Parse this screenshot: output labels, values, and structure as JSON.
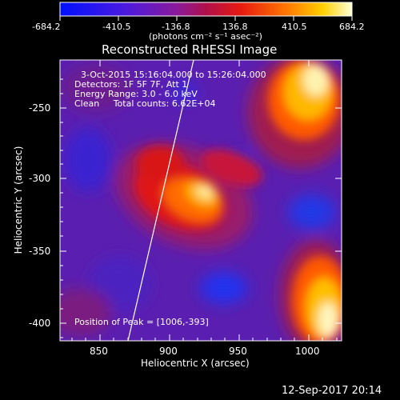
{
  "colorbar": {
    "tick_labels": [
      "-684.2",
      "-410.5",
      "-136.8",
      "136.8",
      "410.5",
      "684.2"
    ],
    "unit_label": "(photons cm⁻² s⁻¹ asec⁻²)"
  },
  "title": "Reconstructed RHESSI Image",
  "info": {
    "line1": "3-Oct-2015 15:16:04.000 to 15:26:04.000",
    "line2": "Detectors: 1F 5F 7F, Att 1",
    "line3": "Energy Range: 3.0 - 6.0 keV",
    "line4": "Clean     Total counts: 6.62E+04"
  },
  "peak_text": "Position of Peak = [1006,-393]",
  "axes": {
    "xlabel": "Heliocentric X (arcsec)",
    "ylabel": "Heliocentric Y (arcsec)",
    "x_ticks": [
      "850",
      "900",
      "950",
      "1000"
    ],
    "y_ticks": [
      "-250",
      "-300",
      "-350",
      "-400"
    ]
  },
  "timestamp": "12-Sep-2017 20:14",
  "colors": {
    "background": "#000000",
    "text": "#ffffff",
    "limb_line": "#ffffff"
  }
}
